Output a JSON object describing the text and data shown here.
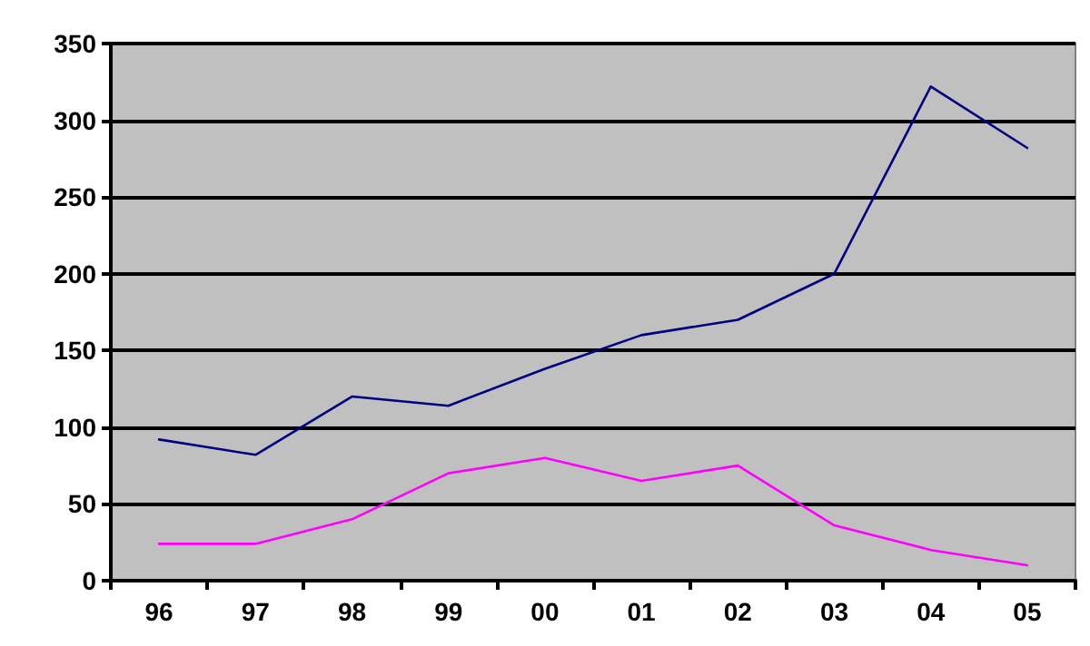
{
  "chart_data": {
    "type": "line",
    "categories": [
      "96",
      "97",
      "98",
      "99",
      "00",
      "01",
      "02",
      "03",
      "04",
      "05"
    ],
    "series": [
      {
        "color": "#000080",
        "values": [
          92,
          82,
          120,
          114,
          138,
          160,
          170,
          200,
          322,
          282
        ]
      },
      {
        "color": "#ff00ff",
        "values": [
          24,
          24,
          40,
          70,
          80,
          65,
          75,
          36,
          20,
          10
        ]
      }
    ],
    "ylim": [
      0,
      350
    ],
    "yticks": [
      0,
      50,
      100,
      150,
      200,
      250,
      300,
      350
    ],
    "grid": "y",
    "marker": "none",
    "line_style": "solid"
  }
}
